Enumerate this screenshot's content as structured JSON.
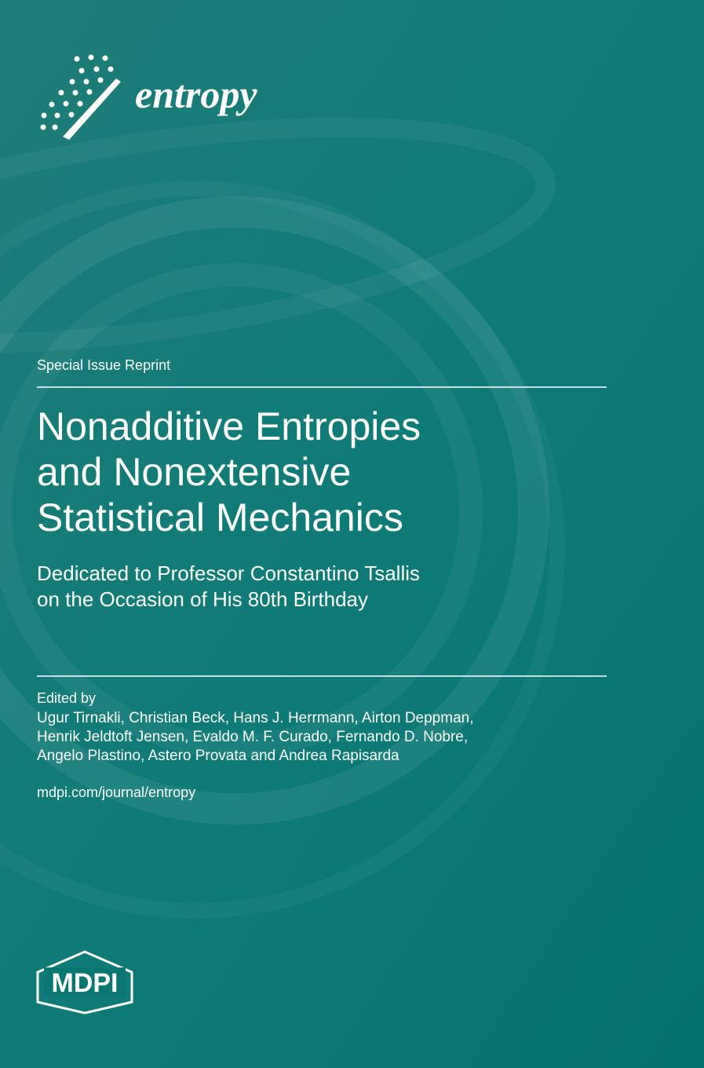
{
  "journal": "entropy",
  "label": "Special Issue Reprint",
  "title_lines": [
    "Nonadditive Entropies",
    "and Nonextensive",
    "Statistical Mechanics"
  ],
  "subtitle_lines": [
    "Dedicated to Professor Constantino Tsallis",
    "on the Occasion of His 80th Birthday"
  ],
  "editors_label": "Edited by",
  "editor_lines": [
    "Ugur Tirnakli, Christian Beck, Hans J. Herrmann, Airton Deppman,",
    "Henrik Jeldtoft Jensen, Evaldo M. F. Curado, Fernando D. Nobre,",
    "Angelo Plastino, Astero Provata and Andrea Rapisarda"
  ],
  "url": "mdpi.com/journal/entropy",
  "publisher": "MDPI"
}
